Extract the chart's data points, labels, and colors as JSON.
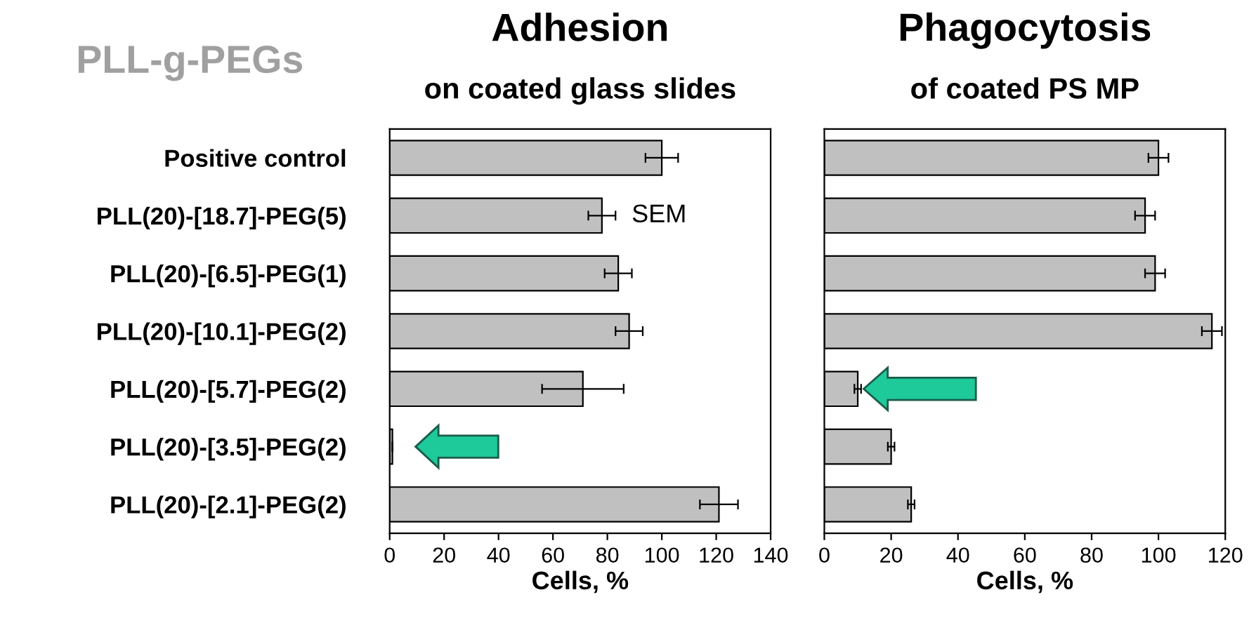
{
  "chart_data": [
    {
      "type": "bar",
      "orientation": "horizontal",
      "title": "Adhesion",
      "subtitle": "on coated glass slides",
      "xlabel": "Cells, %",
      "categories": [
        "Positive control",
        "PLL(20)-[18.7]-PEG(5)",
        "PLL(20)-[6.5]-PEG(1)",
        "PLL(20)-[10.1]-PEG(2)",
        "PLL(20)-[5.7]-PEG(2)",
        "PLL(20)-[3.5]-PEG(2)",
        "PLL(20)-[2.1]-PEG(2)"
      ],
      "series": [
        {
          "color": "#c0c0c0",
          "values": [
            100,
            78,
            84,
            88,
            71,
            1,
            121
          ],
          "errors": [
            6,
            5,
            5,
            5,
            15,
            null,
            7
          ]
        }
      ],
      "xlim": [
        0,
        140
      ],
      "xticks": [
        0,
        20,
        40,
        60,
        80,
        100,
        120,
        140
      ],
      "annotations": [
        "PLL-g-PEGs",
        "SEM"
      ],
      "grid": false,
      "legend": false
    },
    {
      "type": "bar",
      "orientation": "horizontal",
      "title": "Phagocytosis",
      "subtitle": "of coated PS MP",
      "xlabel": "Cells, %",
      "categories": [
        null,
        null,
        null,
        null,
        null,
        null,
        null
      ],
      "series": [
        {
          "color": "#c0c0c0",
          "values": [
            100,
            96,
            99,
            116,
            10,
            20,
            26
          ],
          "errors": [
            3,
            3,
            3,
            3,
            1,
            1,
            1
          ]
        }
      ],
      "xlim": [
        0,
        120
      ],
      "xticks": [
        0,
        20,
        40,
        60,
        80,
        100,
        120
      ],
      "tick_labels": "x",
      "grid": false,
      "legend": false
    }
  ]
}
